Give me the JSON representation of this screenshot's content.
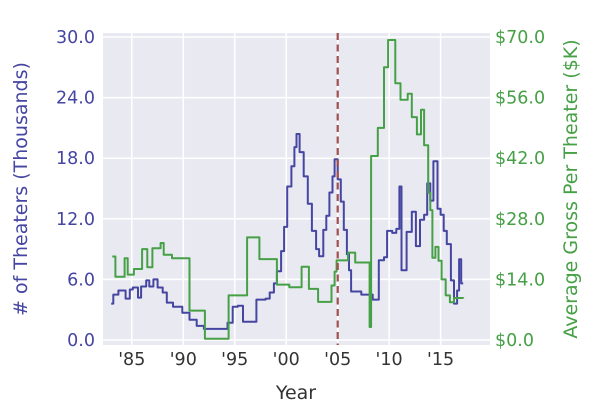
{
  "chart_data": {
    "type": "line",
    "line_style": "step-post",
    "title": "",
    "xlabel": "Year",
    "ylabel_left": "# of Theaters (Thousands)",
    "ylabel_right": "Average Gross Per Theater ($K)",
    "x_range": [
      1982.2,
      2019.8
    ],
    "grid": true,
    "legend_position": "none",
    "x_ticks": [
      {
        "year": 1985,
        "label": "'85"
      },
      {
        "year": 1990,
        "label": "'90"
      },
      {
        "year": 1995,
        "label": "'95"
      },
      {
        "year": 2000,
        "label": "'00"
      },
      {
        "year": 2005,
        "label": "'05"
      },
      {
        "year": 2010,
        "label": "'10"
      },
      {
        "year": 2015,
        "label": "'15"
      }
    ],
    "y_left": {
      "range": [
        0,
        30
      ],
      "ticks": [
        0,
        6,
        12,
        18,
        24,
        30
      ],
      "labels": [
        "0.0",
        "6.0",
        "12.0",
        "18.0",
        "24.0",
        "30.0"
      ]
    },
    "y_right": {
      "range": [
        0,
        70
      ],
      "ticks": [
        0,
        14,
        28,
        42,
        56,
        70
      ],
      "labels": [
        "$0.0",
        "$14.0",
        "$28.0",
        "$42.0",
        "$56.0",
        "$70.0"
      ]
    },
    "vline": {
      "x": 2005,
      "style": "dashed",
      "color": "#a14f4f"
    },
    "series": [
      {
        "name": "# of Theaters (Thousands)",
        "axis": "left",
        "color": "#4545a2",
        "points": [
          [
            1983.0,
            3.6
          ],
          [
            1983.2,
            4.5
          ],
          [
            1983.7,
            4.9
          ],
          [
            1984.4,
            4.1
          ],
          [
            1984.8,
            5.0
          ],
          [
            1985.1,
            5.2
          ],
          [
            1985.6,
            4.2
          ],
          [
            1985.9,
            5.3
          ],
          [
            1986.4,
            5.9
          ],
          [
            1986.7,
            5.3
          ],
          [
            1987.1,
            6.0
          ],
          [
            1987.5,
            5.2
          ],
          [
            1988.0,
            4.7
          ],
          [
            1988.4,
            3.7
          ],
          [
            1989.0,
            3.3
          ],
          [
            1989.9,
            2.7
          ],
          [
            1990.6,
            2.0
          ],
          [
            1991.3,
            1.4
          ],
          [
            1992.0,
            1.1
          ],
          [
            1994.3,
            1.7
          ],
          [
            1994.8,
            3.3
          ],
          [
            1995.3,
            3.4
          ],
          [
            1995.8,
            1.8
          ],
          [
            1997.1,
            4.0
          ],
          [
            1998.0,
            4.1
          ],
          [
            1998.4,
            4.7
          ],
          [
            1998.8,
            5.6
          ],
          [
            1999.1,
            6.8
          ],
          [
            1999.5,
            8.8
          ],
          [
            1999.8,
            11.2
          ],
          [
            2000.1,
            15.2
          ],
          [
            2000.5,
            17.2
          ],
          [
            2000.8,
            19.1
          ],
          [
            2001.0,
            20.4
          ],
          [
            2001.3,
            18.6
          ],
          [
            2001.7,
            16.2
          ],
          [
            2002.1,
            13.5
          ],
          [
            2002.5,
            10.8
          ],
          [
            2002.9,
            9.0
          ],
          [
            2003.2,
            8.3
          ],
          [
            2003.6,
            10.9
          ],
          [
            2003.9,
            12.3
          ],
          [
            2004.2,
            14.6
          ],
          [
            2004.5,
            16.2
          ],
          [
            2004.7,
            17.9
          ],
          [
            2005.0,
            15.9
          ],
          [
            2005.3,
            13.7
          ],
          [
            2005.6,
            10.9
          ],
          [
            2005.9,
            8.5
          ],
          [
            2006.1,
            6.9
          ],
          [
            2006.3,
            4.8
          ],
          [
            2007.3,
            4.5
          ],
          [
            2008.4,
            4.0
          ],
          [
            2009.0,
            7.9
          ],
          [
            2009.5,
            8.2
          ],
          [
            2009.8,
            10.8
          ],
          [
            2010.3,
            10.6
          ],
          [
            2010.7,
            11.0
          ],
          [
            2011.0,
            15.2
          ],
          [
            2011.2,
            6.9
          ],
          [
            2011.7,
            10.7
          ],
          [
            2012.2,
            12.7
          ],
          [
            2012.6,
            9.3
          ],
          [
            2013.0,
            11.9
          ],
          [
            2013.4,
            12.4
          ],
          [
            2013.7,
            15.5
          ],
          [
            2014.0,
            13.8
          ],
          [
            2014.3,
            17.7
          ],
          [
            2014.7,
            13.0
          ],
          [
            2015.0,
            12.4
          ],
          [
            2015.3,
            10.8
          ],
          [
            2015.6,
            9.5
          ],
          [
            2016.0,
            5.9
          ],
          [
            2016.3,
            3.6
          ],
          [
            2016.6,
            4.9
          ],
          [
            2016.8,
            8.0
          ],
          [
            2017.0,
            5.6
          ],
          [
            2017.2,
            5.6
          ]
        ]
      },
      {
        "name": "Average Gross Per Theater ($K)",
        "axis": "right",
        "color": "#46a046",
        "points": [
          [
            1983.1,
            19.3
          ],
          [
            1983.4,
            14.6
          ],
          [
            1984.3,
            18.9
          ],
          [
            1984.6,
            15.1
          ],
          [
            1985.2,
            16.4
          ],
          [
            1986.0,
            21.0
          ],
          [
            1986.5,
            16.8
          ],
          [
            1987.0,
            21.2
          ],
          [
            1987.8,
            22.4
          ],
          [
            1988.1,
            19.7
          ],
          [
            1988.9,
            18.9
          ],
          [
            1990.6,
            6.8
          ],
          [
            1992.1,
            0.3
          ],
          [
            1994.4,
            10.3
          ],
          [
            1996.2,
            23.7
          ],
          [
            1997.4,
            18.7
          ],
          [
            1999.1,
            12.8
          ],
          [
            2000.3,
            12.2
          ],
          [
            2001.5,
            16.9
          ],
          [
            2002.2,
            11.8
          ],
          [
            2003.1,
            8.8
          ],
          [
            2004.4,
            12.6
          ],
          [
            2004.7,
            15.8
          ],
          [
            2004.9,
            18.4
          ],
          [
            2006.0,
            20.2
          ],
          [
            2006.7,
            17.9
          ],
          [
            2008.1,
            3.0
          ],
          [
            2008.25,
            42.5
          ],
          [
            2008.9,
            49.0
          ],
          [
            2009.5,
            63.0
          ],
          [
            2009.9,
            69.3
          ],
          [
            2010.6,
            59.3
          ],
          [
            2011.1,
            55.5
          ],
          [
            2011.8,
            56.9
          ],
          [
            2012.2,
            51.5
          ],
          [
            2012.7,
            47.5
          ],
          [
            2013.1,
            53.2
          ],
          [
            2013.4,
            45.0
          ],
          [
            2013.8,
            34.0
          ],
          [
            2014.0,
            30.0
          ],
          [
            2014.2,
            19.0
          ],
          [
            2014.5,
            21.5
          ],
          [
            2014.8,
            18.3
          ],
          [
            2015.1,
            14.0
          ],
          [
            2015.5,
            10.3
          ],
          [
            2015.9,
            8.7
          ],
          [
            2016.3,
            9.7
          ],
          [
            2017.2,
            9.6
          ]
        ]
      }
    ],
    "colors": {
      "plot_background": "#e9e9f2",
      "grid": "#ffffff",
      "left_axis": "#4545a2",
      "right_axis": "#46a046",
      "x_text": "#333333"
    }
  }
}
